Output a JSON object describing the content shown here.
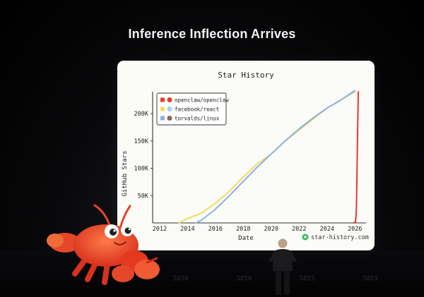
{
  "slide": {
    "title": "Inference Inflection Arrives"
  },
  "chart_data": {
    "type": "line",
    "title": "Star History",
    "xlabel": "Date",
    "ylabel": "GitHub Stars",
    "x_ticks": [
      "2012",
      "2014",
      "2016",
      "2018",
      "2020",
      "2022",
      "2024",
      "2026"
    ],
    "y_ticks": [
      "50K",
      "100K",
      "150K",
      "200K"
    ],
    "xlim": [
      2011.5,
      2026.8
    ],
    "ylim": [
      0,
      240000
    ],
    "legend_position": "top-left",
    "grid": false,
    "series": [
      {
        "name": "openclaw/openclaw",
        "color": "#e8392c",
        "x": [
          2025.9,
          2026.05,
          2026.1,
          2026.15,
          2026.2,
          2026.25
        ],
        "y": [
          0,
          2000,
          20000,
          90000,
          180000,
          240000
        ]
      },
      {
        "name": "facebook/react",
        "color": "#f1dc5a",
        "x": [
          2013.4,
          2014,
          2015,
          2016,
          2017,
          2018,
          2019,
          2020,
          2021,
          2022,
          2023,
          2024,
          2025,
          2026
        ],
        "y": [
          0,
          8000,
          18000,
          36000,
          58000,
          84000,
          108000,
          126000,
          150000,
          170000,
          190000,
          210000,
          225000,
          240000
        ]
      },
      {
        "name": "torvalds/linux",
        "color": "#8ab0e6",
        "x": [
          2014.6,
          2015,
          2016,
          2017,
          2018,
          2019,
          2020,
          2021,
          2022,
          2023,
          2024,
          2025,
          2026
        ],
        "y": [
          0,
          5000,
          25000,
          50000,
          76000,
          102000,
          126000,
          150000,
          172000,
          192000,
          210000,
          225000,
          242000
        ]
      }
    ],
    "watermark": "star-history.com"
  }
}
